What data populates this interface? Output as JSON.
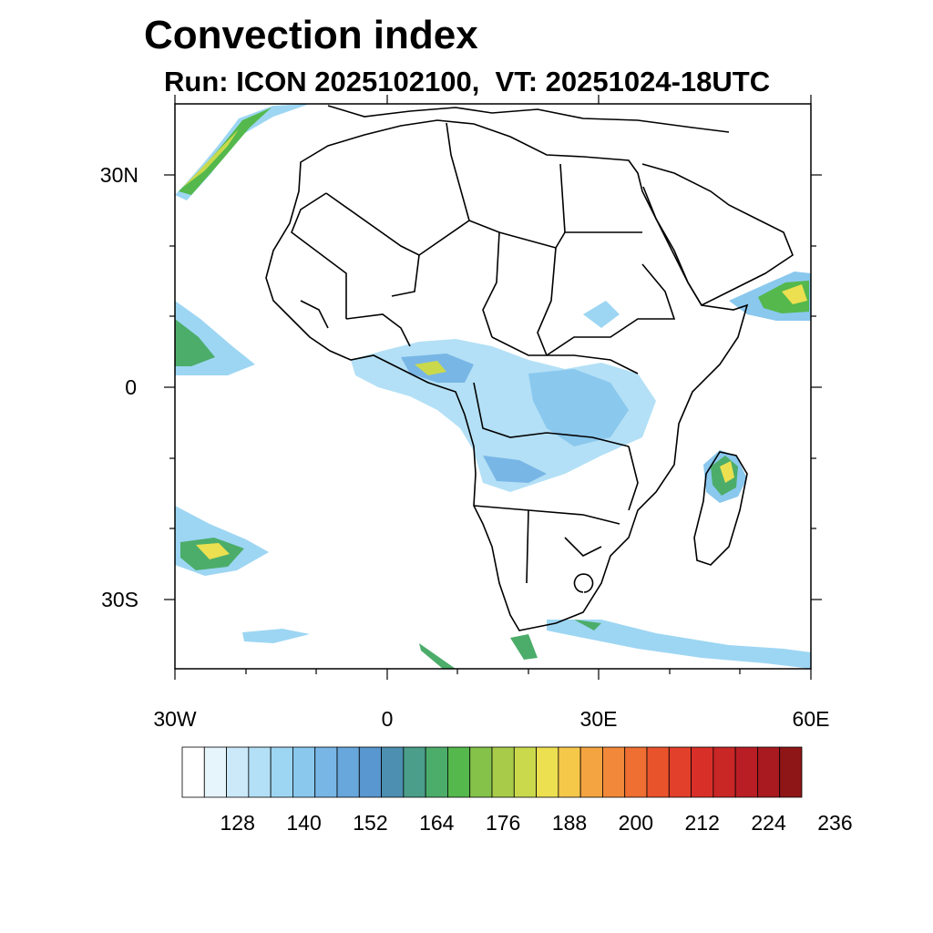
{
  "title": "Convection index",
  "subtitle": "Run: ICON 2025102100,  VT: 20251024-18UTC",
  "axes": {
    "lat_labels": [
      "30N",
      "0",
      "30S"
    ],
    "lon_labels": [
      "30W",
      "0",
      "30E",
      "60E"
    ],
    "lon_range": [
      -30,
      60
    ],
    "lat_range": [
      -40,
      40
    ]
  },
  "colorbar": {
    "tick_labels": [
      "128",
      "140",
      "152",
      "164",
      "176",
      "188",
      "200",
      "212",
      "224",
      "236"
    ],
    "colors": [
      "#ffffff",
      "#e6f4fc",
      "#cbe9f8",
      "#b3e0f6",
      "#9dd6f3",
      "#8ac8ee",
      "#78b6e6",
      "#68a7dc",
      "#5897cf",
      "#4c8fb0",
      "#4a9e8a",
      "#4cad6a",
      "#54b84c",
      "#85c24a",
      "#a8cc4a",
      "#cad94c",
      "#ece050",
      "#f6c84a",
      "#f4a440",
      "#f2883a",
      "#ef6e32",
      "#e9532c",
      "#e2402a",
      "#d83028",
      "#c92626",
      "#b91e24",
      "#a81a20",
      "#8e1616"
    ]
  },
  "icons": [
    "africa-coastline-map",
    "convection-shading"
  ]
}
